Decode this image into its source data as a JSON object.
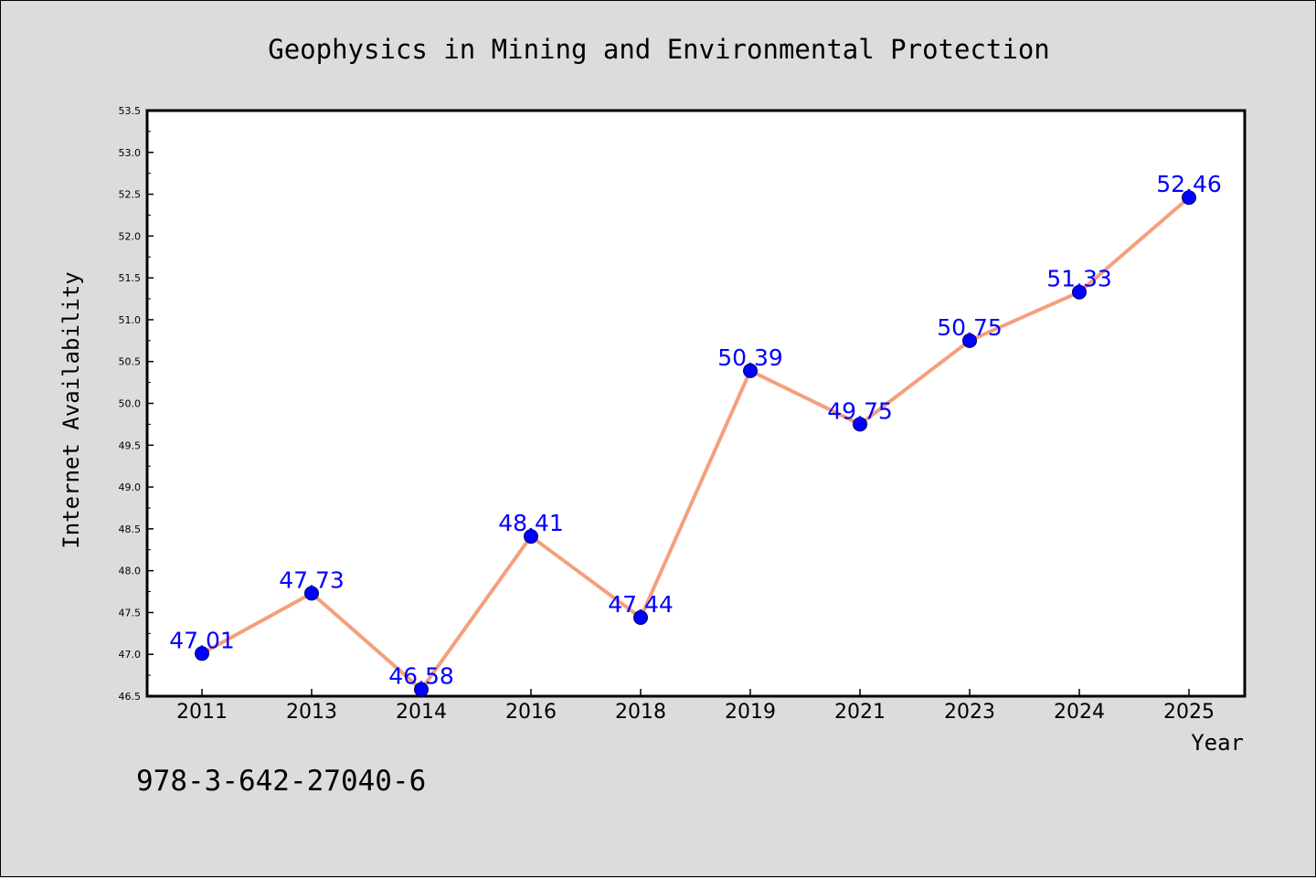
{
  "chart_data": {
    "type": "line",
    "title": "Geophysics in Mining and Environmental Protection",
    "xlabel": "Year",
    "ylabel": "Internet Availability",
    "categories": [
      "2011",
      "2013",
      "2014",
      "2016",
      "2018",
      "2019",
      "2021",
      "2023",
      "2024",
      "2025"
    ],
    "series": [
      {
        "values": [
          47.01,
          47.73,
          46.58,
          48.41,
          47.44,
          50.39,
          49.75,
          50.75,
          51.33,
          52.46
        ],
        "data_labels": [
          "47.01",
          "47.73",
          "46.58",
          "48.41",
          "47.44",
          "50.39",
          "49.75",
          "50.75",
          "51.33",
          "52.46"
        ],
        "line_color": "#f4a07c",
        "marker_color": "#0000ff"
      }
    ],
    "ylim": [
      46.5,
      53.5
    ],
    "yticks": [
      "46.5",
      "47.0",
      "47.5",
      "48.0",
      "48.5",
      "49.0",
      "49.5",
      "50.0",
      "50.5",
      "51.0",
      "51.5",
      "52.0",
      "52.5",
      "53.0",
      "53.5"
    ],
    "grid": false,
    "legend": "none"
  },
  "annotation": "978-3-642-27040-6",
  "colors": {
    "background": "#dcdcdc",
    "plot_background": "#ffffff",
    "label_color": "#0000ff"
  }
}
